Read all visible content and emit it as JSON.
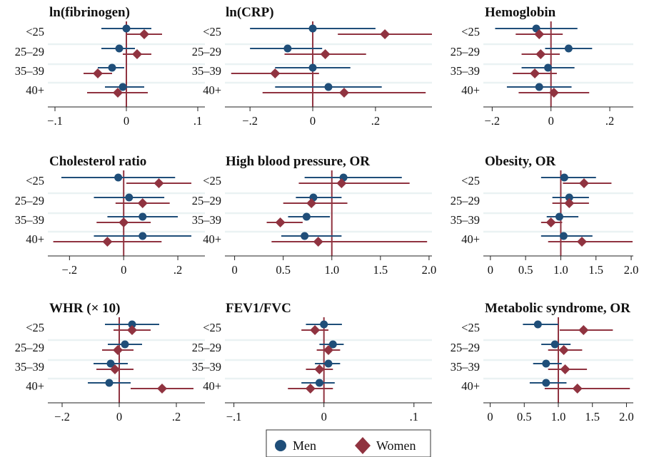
{
  "colors": {
    "men": "#1f4e79",
    "women": "#903340",
    "band": "#eaf2f3",
    "axis": "#222222"
  },
  "legend": {
    "men_label": "Men",
    "women_label": "Women"
  },
  "chart_data": [
    {
      "type": "forest",
      "title": "ln(fibrinogen)",
      "categories": [
        "<25",
        "25–29",
        "35–39",
        "40+"
      ],
      "xlim": [
        -0.11,
        0.11
      ],
      "ticks": [
        -0.1,
        0,
        0.1
      ],
      "tick_labels": [
        "−.1",
        "0",
        ".1"
      ],
      "ref": 0,
      "series": [
        {
          "name": "Men",
          "est": [
            0,
            -0.01,
            -0.02,
            -0.005
          ],
          "lo": [
            -0.035,
            -0.035,
            -0.04,
            -0.03
          ],
          "hi": [
            0.035,
            0.012,
            -0.003,
            0.025
          ]
        },
        {
          "name": "Women",
          "est": [
            0.025,
            0.015,
            -0.04,
            -0.012
          ],
          "lo": [
            0,
            -0.005,
            -0.06,
            -0.055
          ],
          "hi": [
            0.05,
            0.035,
            -0.02,
            0.03
          ]
        }
      ]
    },
    {
      "type": "forest",
      "title": "ln(CRP)",
      "categories": [
        "<25",
        "25–29",
        "35–39",
        "40+"
      ],
      "xlim": [
        -0.28,
        0.38
      ],
      "ticks": [
        -0.2,
        0,
        0.2
      ],
      "tick_labels": [
        "−.2",
        "0",
        ".2"
      ],
      "ref": 0,
      "series": [
        {
          "name": "Men",
          "est": [
            0,
            -0.08,
            0,
            0.05
          ],
          "lo": [
            -0.2,
            -0.2,
            -0.12,
            -0.12
          ],
          "hi": [
            0.2,
            0.03,
            0.12,
            0.22
          ]
        },
        {
          "name": "Women",
          "est": [
            0.23,
            0.04,
            -0.12,
            0.1
          ],
          "lo": [
            0.08,
            -0.09,
            -0.26,
            -0.16
          ],
          "hi": [
            0.38,
            0.17,
            0.02,
            0.36
          ]
        }
      ]
    },
    {
      "type": "forest",
      "title": "Hemoglobin",
      "categories": [
        "<25",
        "25–29",
        "35–39",
        "40+"
      ],
      "xlim": [
        -0.23,
        0.28
      ],
      "ticks": [
        -0.2,
        0,
        0.2
      ],
      "tick_labels": [
        "−.2",
        "0",
        ".2"
      ],
      "ref": 0,
      "series": [
        {
          "name": "Men",
          "est": [
            -0.05,
            0.06,
            -0.01,
            -0.04
          ],
          "lo": [
            -0.19,
            -0.02,
            -0.1,
            -0.15
          ],
          "hi": [
            0.09,
            0.14,
            0.08,
            0.07
          ]
        },
        {
          "name": "Women",
          "est": [
            -0.04,
            -0.035,
            -0.055,
            0.01
          ],
          "lo": [
            -0.12,
            -0.1,
            -0.13,
            -0.11
          ],
          "hi": [
            0.04,
            0.03,
            0.02,
            0.13
          ]
        }
      ]
    },
    {
      "type": "forest",
      "title": "Cholesterol ratio",
      "categories": [
        "<25",
        "25–29",
        "35–39",
        "40+"
      ],
      "xlim": [
        -0.28,
        0.3
      ],
      "ticks": [
        -0.2,
        0,
        0.2
      ],
      "tick_labels": [
        "−.2",
        "0",
        ".2"
      ],
      "ref": 0,
      "series": [
        {
          "name": "Men",
          "est": [
            -0.02,
            0.02,
            0.07,
            0.07
          ],
          "lo": [
            -0.23,
            -0.11,
            -0.06,
            -0.11
          ],
          "hi": [
            0.19,
            0.15,
            0.2,
            0.25
          ]
        },
        {
          "name": "Women",
          "est": [
            0.13,
            0.07,
            0,
            -0.06
          ],
          "lo": [
            0.01,
            -0.03,
            -0.1,
            -0.26
          ],
          "hi": [
            0.25,
            0.17,
            0.1,
            0.14
          ]
        }
      ]
    },
    {
      "type": "forest",
      "title": "High blood pressure, OR",
      "categories": [
        "<25",
        "25–29",
        "35–39",
        "40+"
      ],
      "xlim": [
        -0.1,
        2.03
      ],
      "ticks": [
        0,
        0.5,
        1,
        1.5,
        2
      ],
      "tick_labels": [
        "0",
        "0.5",
        "1.0",
        "1.5",
        "2.0"
      ],
      "ref": 1,
      "series": [
        {
          "name": "Men",
          "est": [
            1.12,
            0.81,
            0.74,
            0.72
          ],
          "lo": [
            0.72,
            0.63,
            0.55,
            0.48
          ],
          "hi": [
            1.72,
            1.1,
            0.98,
            1.1
          ]
        },
        {
          "name": "Women",
          "est": [
            1.1,
            0.79,
            0.47,
            0.86
          ],
          "lo": [
            0.66,
            0.5,
            0.33,
            0.38
          ],
          "hi": [
            1.8,
            1.16,
            0.7,
            1.98
          ]
        }
      ]
    },
    {
      "type": "forest",
      "title": "Obesity, OR",
      "categories": [
        "<25",
        "25–29",
        "35–39",
        "40+"
      ],
      "xlim": [
        -0.1,
        2.03
      ],
      "ticks": [
        0,
        0.5,
        1,
        1.5,
        2
      ],
      "tick_labels": [
        "0",
        "0.5",
        "1.0",
        "1.5",
        "2.0"
      ],
      "ref": 1,
      "series": [
        {
          "name": "Men",
          "est": [
            1.05,
            1.12,
            0.98,
            1.04
          ],
          "lo": [
            0.72,
            0.88,
            0.8,
            0.72
          ],
          "hi": [
            1.5,
            1.4,
            1.25,
            1.45
          ]
        },
        {
          "name": "Women",
          "est": [
            1.33,
            1.12,
            0.86,
            1.3
          ],
          "lo": [
            1.03,
            0.88,
            0.72,
            0.82
          ],
          "hi": [
            1.72,
            1.4,
            1.02,
            2.02
          ]
        }
      ]
    },
    {
      "type": "forest",
      "title": "WHR (× 10)",
      "categories": [
        "<25",
        "25–29",
        "35–39",
        "40+"
      ],
      "xlim": [
        -0.25,
        0.3
      ],
      "ticks": [
        -0.2,
        0,
        0.2
      ],
      "tick_labels": [
        "−.2",
        "0",
        ".2"
      ],
      "ref": 0,
      "series": [
        {
          "name": "Men",
          "est": [
            0.045,
            0.02,
            -0.03,
            -0.035
          ],
          "lo": [
            -0.05,
            -0.04,
            -0.09,
            -0.11
          ],
          "hi": [
            0.14,
            0.08,
            0.03,
            0.04
          ]
        },
        {
          "name": "Women",
          "est": [
            0.045,
            -0.005,
            -0.015,
            0.15
          ],
          "lo": [
            -0.02,
            -0.06,
            -0.08,
            0.04
          ],
          "hi": [
            0.11,
            0.05,
            0.05,
            0.26
          ]
        }
      ]
    },
    {
      "type": "forest",
      "title": "FEV1/FVC",
      "categories": [
        "<25",
        "25–29",
        "35–39",
        "40+"
      ],
      "xlim": [
        -0.11,
        0.12
      ],
      "ticks": [
        -0.1,
        0,
        0.1
      ],
      "tick_labels": [
        "−.1",
        "0",
        ".1"
      ],
      "ref": 0,
      "series": [
        {
          "name": "Men",
          "est": [
            0,
            0.01,
            0.005,
            -0.005
          ],
          "lo": [
            -0.02,
            -0.005,
            -0.01,
            -0.025
          ],
          "hi": [
            0.02,
            0.022,
            0.018,
            0.012
          ]
        },
        {
          "name": "Women",
          "est": [
            -0.01,
            0.005,
            -0.005,
            -0.015
          ],
          "lo": [
            -0.025,
            -0.008,
            -0.02,
            -0.04
          ],
          "hi": [
            0.005,
            0.018,
            0.01,
            0.01
          ]
        }
      ]
    },
    {
      "type": "forest",
      "title": "Metabolic syndrome, OR",
      "categories": [
        "<25",
        "25–29",
        "35–39",
        "40+"
      ],
      "xlim": [
        -0.1,
        2.1
      ],
      "ticks": [
        0,
        0.5,
        1,
        1.5,
        2
      ],
      "tick_labels": [
        "0",
        "0.5",
        "1.0",
        "1.5",
        "2.0"
      ],
      "ref": 1,
      "series": [
        {
          "name": "Men",
          "est": [
            0.7,
            0.95,
            0.82,
            0.82
          ],
          "lo": [
            0.48,
            0.75,
            0.63,
            0.58
          ],
          "hi": [
            1.0,
            1.18,
            1.05,
            1.12
          ]
        },
        {
          "name": "Women",
          "est": [
            1.37,
            1.08,
            1.1,
            1.28
          ],
          "lo": [
            1.02,
            0.85,
            0.85,
            0.8
          ],
          "hi": [
            1.8,
            1.35,
            1.42,
            2.05
          ]
        }
      ]
    }
  ]
}
